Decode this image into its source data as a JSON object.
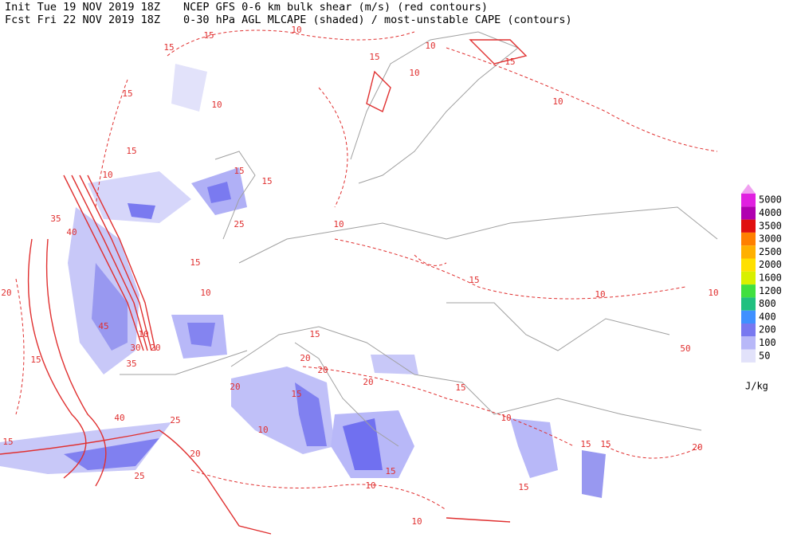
{
  "header": {
    "init": "Init  Tue 19 NOV 2019 18Z",
    "fcst": "Fcst Fri 22 NOV 2019 18Z",
    "line1": "NCEP GFS 0-6 km bulk shear (m/s) (red contours)",
    "line2": "0-30 hPa AGL MLCAPE (shaded) / most-unstable CAPE (contours)"
  },
  "legend": {
    "unit": "J/kg",
    "top_color": "#f0a0f0",
    "levels": [
      {
        "label": "5000",
        "color": "#e020e0"
      },
      {
        "label": "4000",
        "color": "#b000b0"
      },
      {
        "label": "3500",
        "color": "#e01010"
      },
      {
        "label": "3000",
        "color": "#ff8000"
      },
      {
        "label": "2500",
        "color": "#ffb000"
      },
      {
        "label": "2000",
        "color": "#ffe000"
      },
      {
        "label": "1600",
        "color": "#d8f000"
      },
      {
        "label": "1200",
        "color": "#40e040"
      },
      {
        "label": "800",
        "color": "#20c080"
      },
      {
        "label": "400",
        "color": "#4090ff"
      },
      {
        "label": "200",
        "color": "#7878f0"
      },
      {
        "label": "100",
        "color": "#b8b8f8"
      },
      {
        "label": "50",
        "color": "#e2e2fa"
      }
    ]
  },
  "contour_labels": [
    15,
    15,
    10,
    10,
    15,
    10,
    10,
    15,
    10,
    15,
    15,
    10,
    35,
    40,
    45,
    10,
    30,
    20,
    35,
    15,
    40,
    25,
    20,
    25,
    15,
    20,
    10,
    15,
    15,
    15,
    25,
    10,
    15,
    10,
    15,
    20,
    20,
    20,
    10,
    15,
    15,
    10,
    10,
    15,
    15,
    15,
    10,
    20,
    50,
    10,
    20,
    15
  ]
}
